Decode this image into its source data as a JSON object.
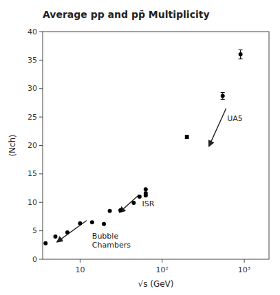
{
  "chart_data": {
    "type": "scatter",
    "title": "Average pp and pp̄ Multiplicity",
    "x_label": "√s (GeV)",
    "y_label": "⟨Nch⟩",
    "log": "x",
    "grid": false,
    "xlim": [
      3.5,
      2000
    ],
    "ylim": [
      0,
      40
    ],
    "xticks": [
      10,
      {
        "value": 100,
        "label": "10²"
      },
      {
        "value": 1000,
        "label": "10³"
      }
    ],
    "yticks": [
      0,
      5,
      10,
      15,
      20,
      25,
      30,
      35,
      40
    ],
    "series": [
      {
        "color": "#000000",
        "marker": "circle",
        "x": [
          3.8,
          5.0,
          7.0,
          10.0,
          14.0,
          19.5
        ],
        "values": [
          2.8,
          4.0,
          4.7,
          6.3,
          6.5,
          6.2
        ]
      },
      {
        "color": "#000000",
        "marker": "circle",
        "x": [
          23,
          31,
          45,
          53,
          63,
          63,
          63
        ],
        "values": [
          8.5,
          8.6,
          9.9,
          11.0,
          11.2,
          11.6,
          12.3
        ]
      },
      {
        "color": "#000000",
        "marker": "circle",
        "x": [
          200,
          546,
          900
        ],
        "values": [
          21.5,
          28.7,
          36.0
        ],
        "errors": [
          0.3,
          0.6,
          0.8
        ]
      }
    ],
    "annotations": [
      {
        "text": "Bubble\nChambers",
        "x": 14,
        "y": 4.8,
        "arrow": {
          "x_start": 12.0,
          "y_start": 6.8,
          "x_end": 5.2,
          "y_end": 3.0
        }
      },
      {
        "text": "ISR",
        "x": 57,
        "y": 10.5,
        "arrow": {
          "x_start": 52,
          "y_start": 11.3,
          "x_end": 30,
          "y_end": 8.2
        }
      },
      {
        "text": "UA5",
        "x": 620,
        "y": 25.5,
        "arrow": {
          "x_start": 600,
          "y_start": 26.5,
          "x_end": 370,
          "y_end": 19.8
        }
      }
    ]
  }
}
